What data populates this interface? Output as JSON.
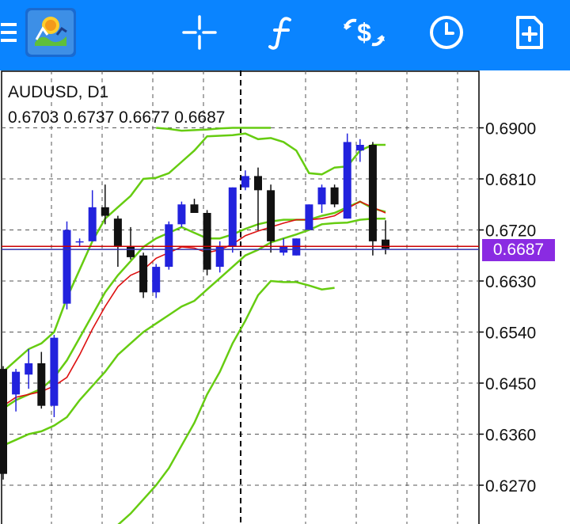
{
  "toolbar": {
    "menu_icon": "menu-icon",
    "logo_icon": "metatrader-logo-icon",
    "crosshair_icon": "crosshair-icon",
    "indicators_icon": "function-icon",
    "symbols_icon": "currency-exchange-icon",
    "timeframe_icon": "clock-icon",
    "new_order_icon": "new-order-icon",
    "color": "#0a84ff"
  },
  "chart": {
    "symbol_timeframe": "AUDUSD, D1",
    "ohlc": "0.6703 0.6737 0.6677 0.6687",
    "current_price": "0.6687",
    "price_tag_color": "#8a2be2",
    "colors": {
      "bull": "#2222dd",
      "bear": "#111111",
      "bands": "#66cc11",
      "ma": "#dd1111",
      "bid_line": "#cc0000",
      "ask_line": "#3333aa"
    }
  },
  "chart_data": {
    "type": "candlestick",
    "symbol": "AUDUSD",
    "timeframe": "D1",
    "y_tick_labels": [
      "0.6900",
      "0.6810",
      "0.6720",
      "0.6630",
      "0.6540",
      "0.6450",
      "0.6360",
      "0.6270"
    ],
    "y_ticks": [
      0.69,
      0.681,
      0.672,
      0.663,
      0.654,
      0.645,
      0.636,
      0.627
    ],
    "ylim": [
      0.6205,
      0.6996
    ],
    "grid": true,
    "current_price": 0.6687,
    "ask_price": 0.6691,
    "candles": [
      {
        "o": 0.6475,
        "h": 0.648,
        "l": 0.628,
        "c": 0.629
      },
      {
        "o": 0.643,
        "h": 0.6475,
        "l": 0.64,
        "c": 0.647
      },
      {
        "o": 0.6465,
        "h": 0.651,
        "l": 0.644,
        "c": 0.6485
      },
      {
        "o": 0.6485,
        "h": 0.6505,
        "l": 0.6405,
        "c": 0.641
      },
      {
        "o": 0.641,
        "h": 0.6535,
        "l": 0.639,
        "c": 0.653
      },
      {
        "o": 0.659,
        "h": 0.6735,
        "l": 0.658,
        "c": 0.672
      },
      {
        "o": 0.67,
        "h": 0.6705,
        "l": 0.669,
        "c": 0.67
      },
      {
        "o": 0.67,
        "h": 0.679,
        "l": 0.67,
        "c": 0.676
      },
      {
        "o": 0.676,
        "h": 0.68,
        "l": 0.673,
        "c": 0.6745
      },
      {
        "o": 0.674,
        "h": 0.6745,
        "l": 0.6655,
        "c": 0.669
      },
      {
        "o": 0.669,
        "h": 0.6725,
        "l": 0.6668,
        "c": 0.6672
      },
      {
        "o": 0.6675,
        "h": 0.668,
        "l": 0.66,
        "c": 0.661
      },
      {
        "o": 0.661,
        "h": 0.666,
        "l": 0.66,
        "c": 0.6655
      },
      {
        "o": 0.6655,
        "h": 0.6735,
        "l": 0.665,
        "c": 0.673
      },
      {
        "o": 0.673,
        "h": 0.677,
        "l": 0.6725,
        "c": 0.6765
      },
      {
        "o": 0.6765,
        "h": 0.6775,
        "l": 0.675,
        "c": 0.675
      },
      {
        "o": 0.675,
        "h": 0.6755,
        "l": 0.664,
        "c": 0.665
      },
      {
        "o": 0.6655,
        "h": 0.67,
        "l": 0.6645,
        "c": 0.669
      },
      {
        "o": 0.669,
        "h": 0.6795,
        "l": 0.668,
        "c": 0.6795
      },
      {
        "o": 0.6795,
        "h": 0.6825,
        "l": 0.679,
        "c": 0.6815
      },
      {
        "o": 0.6815,
        "h": 0.683,
        "l": 0.672,
        "c": 0.679
      },
      {
        "o": 0.679,
        "h": 0.68,
        "l": 0.668,
        "c": 0.67
      },
      {
        "o": 0.668,
        "h": 0.6705,
        "l": 0.6675,
        "c": 0.669
      },
      {
        "o": 0.6675,
        "h": 0.6705,
        "l": 0.6675,
        "c": 0.6705
      },
      {
        "o": 0.672,
        "h": 0.6765,
        "l": 0.672,
        "c": 0.6765
      },
      {
        "o": 0.6765,
        "h": 0.68,
        "l": 0.675,
        "c": 0.6795
      },
      {
        "o": 0.6795,
        "h": 0.68,
        "l": 0.676,
        "c": 0.6765
      },
      {
        "o": 0.674,
        "h": 0.689,
        "l": 0.674,
        "c": 0.6875
      },
      {
        "o": 0.686,
        "h": 0.688,
        "l": 0.684,
        "c": 0.687
      },
      {
        "o": 0.687,
        "h": 0.6875,
        "l": 0.6675,
        "c": 0.67
      },
      {
        "o": 0.6703,
        "h": 0.6737,
        "l": 0.6677,
        "c": 0.6687
      }
    ],
    "bollinger_upper": [
      0.647,
      0.649,
      0.651,
      0.652,
      0.654,
      0.66,
      0.665,
      0.67,
      0.674,
      0.676,
      0.678,
      0.681,
      0.6812,
      0.682,
      0.684,
      0.686,
      0.6885,
      0.6886,
      0.6887,
      0.689,
      0.688,
      0.6882,
      0.6875,
      0.686,
      0.682,
      0.6818,
      0.683,
      0.6832,
      0.686,
      0.687,
      0.687
    ],
    "bollinger_middle": [
      0.6405,
      0.642,
      0.643,
      0.644,
      0.646,
      0.649,
      0.653,
      0.657,
      0.661,
      0.664,
      0.6665,
      0.669,
      0.6705,
      0.6715,
      0.6725,
      0.6715,
      0.6705,
      0.6705,
      0.6712,
      0.6722,
      0.673,
      0.6735,
      0.6738,
      0.6738,
      0.6738,
      0.6745,
      0.675,
      0.676,
      0.677,
      0.6758,
      0.6752
    ],
    "bollinger_lower": [
      0.634,
      0.635,
      0.636,
      0.6365,
      0.6375,
      0.639,
      0.642,
      0.6445,
      0.647,
      0.65,
      0.652,
      0.654,
      0.6555,
      0.657,
      0.6585,
      0.6595,
      0.6615,
      0.6635,
      0.6655,
      0.6675,
      0.6685,
      0.6698,
      0.6705,
      0.6712,
      0.672,
      0.673,
      0.6732,
      0.6733,
      0.6738,
      0.674,
      0.674
    ],
    "moving_average": [
      0.641,
      0.6425,
      0.643,
      0.6435,
      0.6445,
      0.646,
      0.65,
      0.6545,
      0.6585,
      0.662,
      0.664,
      0.665,
      0.667,
      0.668,
      0.669,
      0.6688,
      0.668,
      0.6685,
      0.6695,
      0.671,
      0.6718,
      0.6725,
      0.6732,
      0.6738,
      0.6738,
      0.674,
      0.6745,
      0.6758,
      0.677,
      0.676,
      0.675
    ],
    "outer_band_upper": [
      0.69,
      0.6898,
      0.6895,
      0.6896,
      0.6897,
      0.6899,
      0.69,
      0.69,
      0.69,
      0.69
    ],
    "outer_band_lower": [
      0.62,
      0.622,
      0.6245,
      0.627,
      0.63,
      0.634,
      0.638,
      0.643,
      0.647,
      0.652,
      0.656,
      0.6605,
      0.663,
      0.6628,
      0.6628,
      0.6622,
      0.6615,
      0.6618
    ]
  }
}
